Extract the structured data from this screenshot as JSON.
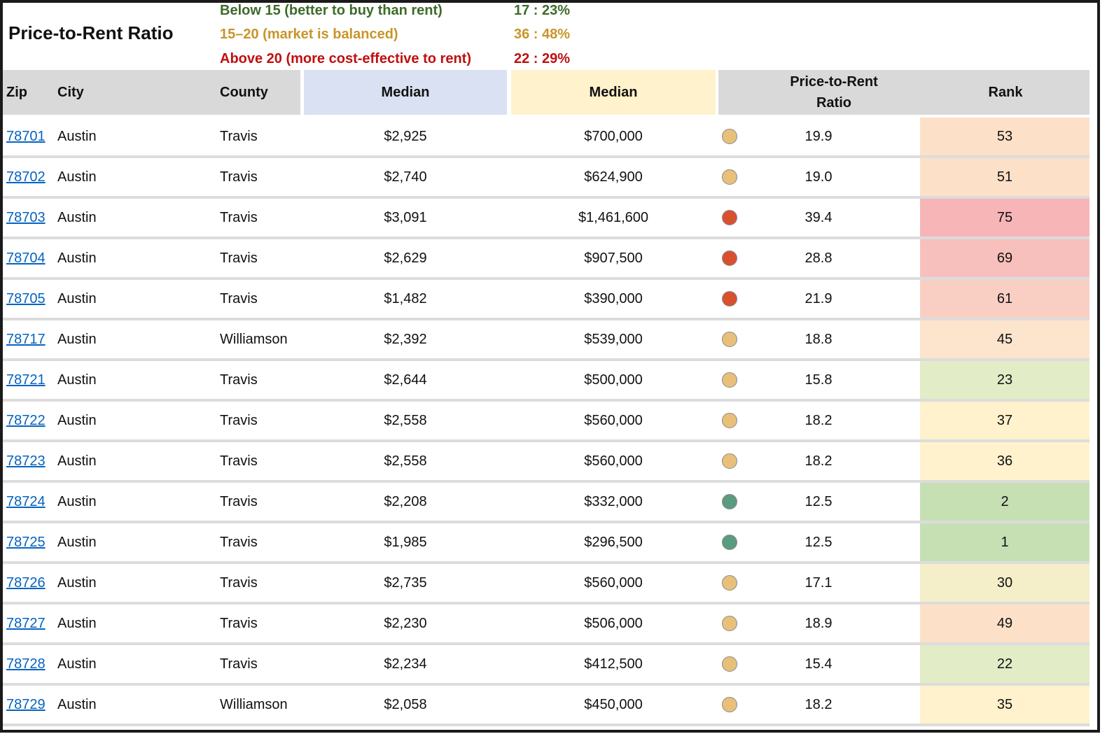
{
  "title": "Price-to-Rent Ratio",
  "legend": [
    {
      "label": "Below 15 (better to buy than rent)",
      "count": "17 :  23%",
      "color": "#3d6b2a"
    },
    {
      "label": "15–20 (market is balanced)",
      "count": "36 :  48%",
      "color": "#c8952a"
    },
    {
      "label": "Above 20 (more cost-effective to rent)",
      "count": "22 :  29%",
      "color": "#c00f0f"
    }
  ],
  "headers": {
    "zip": "Zip",
    "city": "City",
    "county": "County",
    "median_rent": "Median",
    "median_price": "Median",
    "ratio_line1": "Price-to-Rent",
    "ratio_line2": "Ratio",
    "rank": "Rank"
  },
  "colors": {
    "dot_green": "#5b9b7f",
    "dot_amber": "#e8c07a",
    "dot_red": "#d9502f",
    "rank_green": "#c6e0b4",
    "rank_lightgreen": "#e2ecc6",
    "rank_yellow": "#fff2cc",
    "rank_peach": "#fde0c8",
    "rank_salmon": "#f8c4c0",
    "rank_pink": "#f7b5b8"
  },
  "rows": [
    {
      "zip": "78701",
      "city": "Austin",
      "county": "Travis",
      "rent": "$2,925",
      "price": "$700,000",
      "status": "amber",
      "ratio": "19.9",
      "rank": "53",
      "rank_color": "#fde0c8"
    },
    {
      "zip": "78702",
      "city": "Austin",
      "county": "Travis",
      "rent": "$2,740",
      "price": "$624,900",
      "status": "amber",
      "ratio": "19.0",
      "rank": "51",
      "rank_color": "#fde0c8"
    },
    {
      "zip": "78703",
      "city": "Austin",
      "county": "Travis",
      "rent": "$3,091",
      "price": "$1,461,600",
      "status": "red",
      "ratio": "39.4",
      "rank": "75",
      "rank_color": "#f7b5b8"
    },
    {
      "zip": "78704",
      "city": "Austin",
      "county": "Travis",
      "rent": "$2,629",
      "price": "$907,500",
      "status": "red",
      "ratio": "28.8",
      "rank": "69",
      "rank_color": "#f8c0bc"
    },
    {
      "zip": "78705",
      "city": "Austin",
      "county": "Travis",
      "rent": "$1,482",
      "price": "$390,000",
      "status": "red",
      "ratio": "21.9",
      "rank": "61",
      "rank_color": "#f9cfc4"
    },
    {
      "zip": "78717",
      "city": "Austin",
      "county": "Williamson",
      "rent": "$2,392",
      "price": "$539,000",
      "status": "amber",
      "ratio": "18.8",
      "rank": "45",
      "rank_color": "#fde4cc"
    },
    {
      "zip": "78721",
      "city": "Austin",
      "county": "Travis",
      "rent": "$2,644",
      "price": "$500,000",
      "status": "amber",
      "ratio": "15.8",
      "rank": "23",
      "rank_color": "#e2ecc6"
    },
    {
      "zip": "78722",
      "city": "Austin",
      "county": "Travis",
      "rent": "$2,558",
      "price": "$560,000",
      "status": "amber",
      "ratio": "18.2",
      "rank": "37",
      "rank_color": "#fff2cc"
    },
    {
      "zip": "78723",
      "city": "Austin",
      "county": "Travis",
      "rent": "$2,558",
      "price": "$560,000",
      "status": "amber",
      "ratio": "18.2",
      "rank": "36",
      "rank_color": "#fff2cc"
    },
    {
      "zip": "78724",
      "city": "Austin",
      "county": "Travis",
      "rent": "$2,208",
      "price": "$332,000",
      "status": "green",
      "ratio": "12.5",
      "rank": "2",
      "rank_color": "#c6e0b4"
    },
    {
      "zip": "78725",
      "city": "Austin",
      "county": "Travis",
      "rent": "$1,985",
      "price": "$296,500",
      "status": "green",
      "ratio": "12.5",
      "rank": "1",
      "rank_color": "#c6e0b4"
    },
    {
      "zip": "78726",
      "city": "Austin",
      "county": "Travis",
      "rent": "$2,735",
      "price": "$560,000",
      "status": "amber",
      "ratio": "17.1",
      "rank": "30",
      "rank_color": "#f4efc8"
    },
    {
      "zip": "78727",
      "city": "Austin",
      "county": "Travis",
      "rent": "$2,230",
      "price": "$506,000",
      "status": "amber",
      "ratio": "18.9",
      "rank": "49",
      "rank_color": "#fde0c8"
    },
    {
      "zip": "78728",
      "city": "Austin",
      "county": "Travis",
      "rent": "$2,234",
      "price": "$412,500",
      "status": "amber",
      "ratio": "15.4",
      "rank": "22",
      "rank_color": "#e2ecc6"
    },
    {
      "zip": "78729",
      "city": "Austin",
      "county": "Williamson",
      "rent": "$2,058",
      "price": "$450,000",
      "status": "amber",
      "ratio": "18.2",
      "rank": "35",
      "rank_color": "#fff2cc"
    }
  ]
}
